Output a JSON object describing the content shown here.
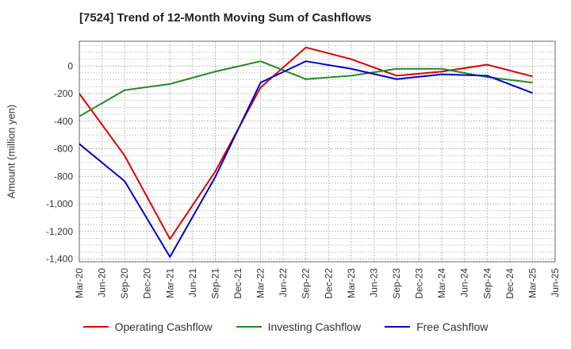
{
  "chart_data": {
    "type": "line",
    "title": "[7524]  Trend of 12-Month Moving Sum of Cashflows",
    "ylabel": "Amount (million yen)",
    "xlabel": "",
    "x_ticks": [
      "Mar-20",
      "Jun-20",
      "Sep-20",
      "Dec-20",
      "Mar-21",
      "Jun-21",
      "Sep-21",
      "Dec-21",
      "Mar-22",
      "Jun-22",
      "Sep-22",
      "Dec-22",
      "Mar-23",
      "Jun-23",
      "Sep-23",
      "Dec-23",
      "Mar-24",
      "Jun-24",
      "Sep-24",
      "Dec-24",
      "Mar-25",
      "Jun-25"
    ],
    "y_ticks": [
      0,
      -200,
      -400,
      -600,
      -800,
      -1000,
      -1200,
      -1400
    ],
    "y_tick_labels": [
      "0",
      "-200",
      "-400",
      "-600",
      "-800",
      "-1,000",
      "-1,200",
      "-1,400"
    ],
    "ylim": [
      -1420,
      180
    ],
    "grid": true,
    "legend_position": "bottom",
    "series": [
      {
        "name": "Operating Cashflow",
        "color": "#dd0000",
        "points": [
          [
            "Mar-20",
            -200
          ],
          [
            "Sep-20",
            -650
          ],
          [
            "Mar-21",
            -1255
          ],
          [
            "Sep-21",
            -765
          ],
          [
            "Mar-22",
            -155
          ],
          [
            "Sep-22",
            135
          ],
          [
            "Mar-23",
            50
          ],
          [
            "Sep-23",
            -70
          ],
          [
            "Mar-24",
            -40
          ],
          [
            "Sep-24",
            10
          ],
          [
            "Mar-25",
            -75
          ]
        ]
      },
      {
        "name": "Investing Cashflow",
        "color": "#228822",
        "points": [
          [
            "Mar-20",
            -365
          ],
          [
            "Sep-20",
            -175
          ],
          [
            "Mar-21",
            -130
          ],
          [
            "Sep-21",
            -40
          ],
          [
            "Mar-22",
            35
          ],
          [
            "Sep-22",
            -95
          ],
          [
            "Mar-23",
            -70
          ],
          [
            "Sep-23",
            -20
          ],
          [
            "Mar-24",
            -20
          ],
          [
            "Sep-24",
            -80
          ],
          [
            "Mar-25",
            -120
          ]
        ]
      },
      {
        "name": "Free Cashflow",
        "color": "#0000cc",
        "points": [
          [
            "Mar-20",
            -565
          ],
          [
            "Sep-20",
            -835
          ],
          [
            "Mar-21",
            -1385
          ],
          [
            "Sep-21",
            -805
          ],
          [
            "Mar-22",
            -120
          ],
          [
            "Sep-22",
            35
          ],
          [
            "Mar-23",
            -20
          ],
          [
            "Sep-23",
            -95
          ],
          [
            "Mar-24",
            -60
          ],
          [
            "Sep-24",
            -70
          ],
          [
            "Mar-25",
            -195
          ]
        ]
      }
    ]
  }
}
